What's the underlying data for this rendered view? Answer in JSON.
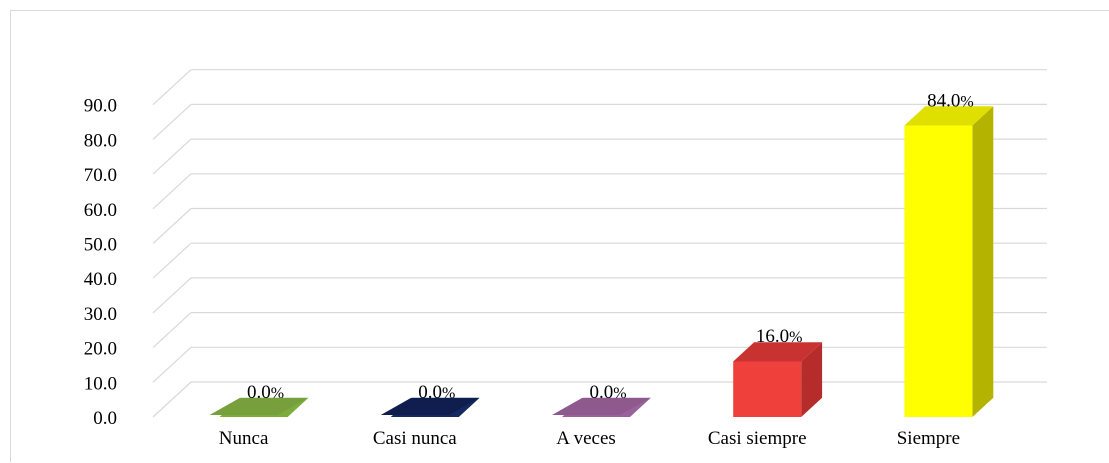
{
  "chart_data": {
    "type": "bar",
    "categories": [
      "Nunca",
      "Casi nunca",
      "A veces",
      "Casi siempre",
      "Siempre"
    ],
    "values": [
      0.0,
      0.0,
      0.0,
      16.0,
      84.0
    ],
    "data_labels": [
      "0.0%",
      "0.0%",
      "0.0%",
      "16.0%",
      "84.0%"
    ],
    "y_ticks": [
      "0.0",
      "10.0",
      "20.0",
      "30.0",
      "40.0",
      "50.0",
      "60.0",
      "70.0",
      "80.0",
      "90.0"
    ],
    "ylim": [
      0,
      90
    ],
    "grid": true,
    "legend": "none",
    "title": "",
    "xlabel": "",
    "ylabel": "",
    "colors": {
      "front": [
        "#77a03c",
        "#0f1e4f",
        "#8e5a8e",
        "#f0403c",
        "#ffff00"
      ],
      "side": [
        "#5a7a2c",
        "#09143a",
        "#6c426c",
        "#b52c2a",
        "#b3b300"
      ],
      "top": [
        "#7cab3e",
        "#132a5e",
        "#9a629a",
        "#c83230",
        "#e0e000"
      ]
    }
  }
}
